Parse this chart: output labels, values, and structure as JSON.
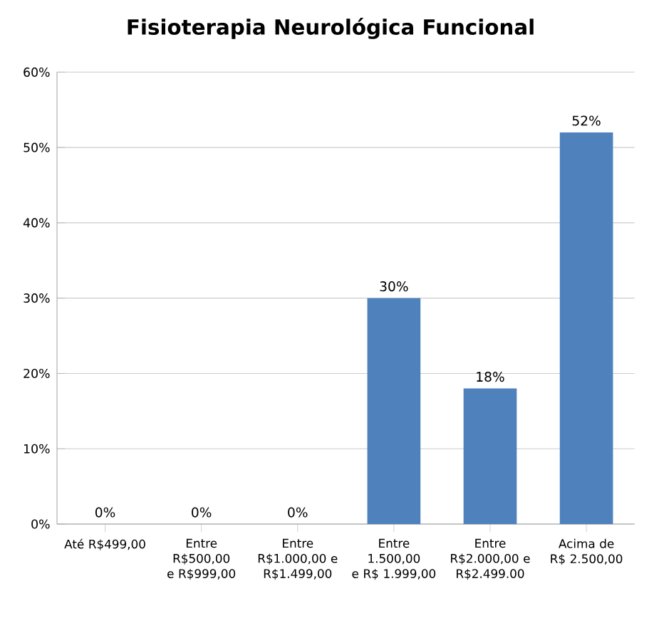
{
  "chart_data": {
    "type": "bar",
    "title": "Fisioterapia Neurológica Funcional",
    "categories": [
      "Até R$499,00",
      "Entre R$500,00 e R$999,00",
      "Entre R$1.000,00 e R$1.499,00",
      "Entre 1.500,00 e R$ 1.999,00",
      "Entre R$2.000,00 e R$2.499.00",
      "Acima de R$ 2.500,00"
    ],
    "values": [
      0,
      0,
      0,
      30,
      18,
      52
    ],
    "value_labels": [
      "0%",
      "0%",
      "0%",
      "30%",
      "18%",
      "52%"
    ],
    "color": "#4f81bd",
    "ylim": [
      0,
      60
    ],
    "yticks": [
      {
        "value": 0,
        "label": "0%"
      },
      {
        "value": 10,
        "label": "10%"
      },
      {
        "value": 20,
        "label": "20%"
      },
      {
        "value": 30,
        "label": "30%"
      },
      {
        "value": 40,
        "label": "40%"
      },
      {
        "value": 50,
        "label": "50%"
      },
      {
        "value": 60,
        "label": "60%"
      }
    ],
    "grid": "y"
  }
}
